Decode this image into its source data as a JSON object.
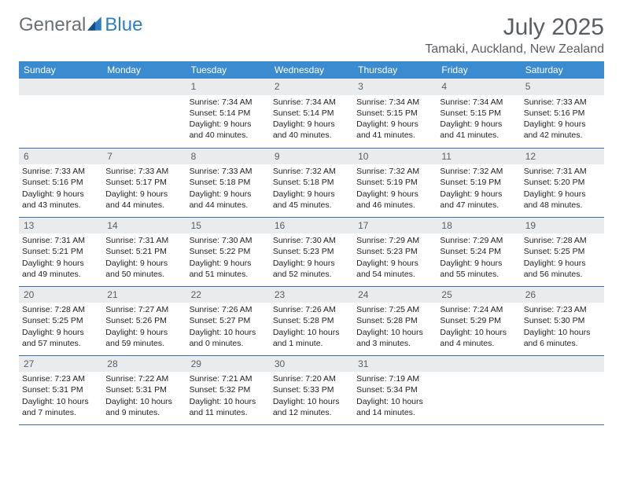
{
  "brand": {
    "part1": "General",
    "part2": "Blue"
  },
  "title": "July 2025",
  "location": "Tamaki, Auckland, New Zealand",
  "weekdays": [
    "Sunday",
    "Monday",
    "Tuesday",
    "Wednesday",
    "Thursday",
    "Friday",
    "Saturday"
  ],
  "colors": {
    "header_bg": "#3a8bd0",
    "header_text": "#ffffff",
    "daynum_bg": "#e9ebec",
    "text_muted": "#5a5e62",
    "row_divider": "#3a70a0",
    "logo_gray": "#6b7074",
    "logo_blue": "#2f7ec2"
  },
  "weeks": [
    [
      {
        "day": null
      },
      {
        "day": null
      },
      {
        "day": 1,
        "sunrise": "7:34 AM",
        "sunset": "5:14 PM",
        "daylight": "9 hours and 40 minutes."
      },
      {
        "day": 2,
        "sunrise": "7:34 AM",
        "sunset": "5:14 PM",
        "daylight": "9 hours and 40 minutes."
      },
      {
        "day": 3,
        "sunrise": "7:34 AM",
        "sunset": "5:15 PM",
        "daylight": "9 hours and 41 minutes."
      },
      {
        "day": 4,
        "sunrise": "7:34 AM",
        "sunset": "5:15 PM",
        "daylight": "9 hours and 41 minutes."
      },
      {
        "day": 5,
        "sunrise": "7:33 AM",
        "sunset": "5:16 PM",
        "daylight": "9 hours and 42 minutes."
      }
    ],
    [
      {
        "day": 6,
        "sunrise": "7:33 AM",
        "sunset": "5:16 PM",
        "daylight": "9 hours and 43 minutes."
      },
      {
        "day": 7,
        "sunrise": "7:33 AM",
        "sunset": "5:17 PM",
        "daylight": "9 hours and 44 minutes."
      },
      {
        "day": 8,
        "sunrise": "7:33 AM",
        "sunset": "5:18 PM",
        "daylight": "9 hours and 44 minutes."
      },
      {
        "day": 9,
        "sunrise": "7:32 AM",
        "sunset": "5:18 PM",
        "daylight": "9 hours and 45 minutes."
      },
      {
        "day": 10,
        "sunrise": "7:32 AM",
        "sunset": "5:19 PM",
        "daylight": "9 hours and 46 minutes."
      },
      {
        "day": 11,
        "sunrise": "7:32 AM",
        "sunset": "5:19 PM",
        "daylight": "9 hours and 47 minutes."
      },
      {
        "day": 12,
        "sunrise": "7:31 AM",
        "sunset": "5:20 PM",
        "daylight": "9 hours and 48 minutes."
      }
    ],
    [
      {
        "day": 13,
        "sunrise": "7:31 AM",
        "sunset": "5:21 PM",
        "daylight": "9 hours and 49 minutes."
      },
      {
        "day": 14,
        "sunrise": "7:31 AM",
        "sunset": "5:21 PM",
        "daylight": "9 hours and 50 minutes."
      },
      {
        "day": 15,
        "sunrise": "7:30 AM",
        "sunset": "5:22 PM",
        "daylight": "9 hours and 51 minutes."
      },
      {
        "day": 16,
        "sunrise": "7:30 AM",
        "sunset": "5:23 PM",
        "daylight": "9 hours and 52 minutes."
      },
      {
        "day": 17,
        "sunrise": "7:29 AM",
        "sunset": "5:23 PM",
        "daylight": "9 hours and 54 minutes."
      },
      {
        "day": 18,
        "sunrise": "7:29 AM",
        "sunset": "5:24 PM",
        "daylight": "9 hours and 55 minutes."
      },
      {
        "day": 19,
        "sunrise": "7:28 AM",
        "sunset": "5:25 PM",
        "daylight": "9 hours and 56 minutes."
      }
    ],
    [
      {
        "day": 20,
        "sunrise": "7:28 AM",
        "sunset": "5:25 PM",
        "daylight": "9 hours and 57 minutes."
      },
      {
        "day": 21,
        "sunrise": "7:27 AM",
        "sunset": "5:26 PM",
        "daylight": "9 hours and 59 minutes."
      },
      {
        "day": 22,
        "sunrise": "7:26 AM",
        "sunset": "5:27 PM",
        "daylight": "10 hours and 0 minutes."
      },
      {
        "day": 23,
        "sunrise": "7:26 AM",
        "sunset": "5:28 PM",
        "daylight": "10 hours and 1 minute."
      },
      {
        "day": 24,
        "sunrise": "7:25 AM",
        "sunset": "5:28 PM",
        "daylight": "10 hours and 3 minutes."
      },
      {
        "day": 25,
        "sunrise": "7:24 AM",
        "sunset": "5:29 PM",
        "daylight": "10 hours and 4 minutes."
      },
      {
        "day": 26,
        "sunrise": "7:23 AM",
        "sunset": "5:30 PM",
        "daylight": "10 hours and 6 minutes."
      }
    ],
    [
      {
        "day": 27,
        "sunrise": "7:23 AM",
        "sunset": "5:31 PM",
        "daylight": "10 hours and 7 minutes."
      },
      {
        "day": 28,
        "sunrise": "7:22 AM",
        "sunset": "5:31 PM",
        "daylight": "10 hours and 9 minutes."
      },
      {
        "day": 29,
        "sunrise": "7:21 AM",
        "sunset": "5:32 PM",
        "daylight": "10 hours and 11 minutes."
      },
      {
        "day": 30,
        "sunrise": "7:20 AM",
        "sunset": "5:33 PM",
        "daylight": "10 hours and 12 minutes."
      },
      {
        "day": 31,
        "sunrise": "7:19 AM",
        "sunset": "5:34 PM",
        "daylight": "10 hours and 14 minutes."
      },
      {
        "day": null
      },
      {
        "day": null
      }
    ]
  ]
}
